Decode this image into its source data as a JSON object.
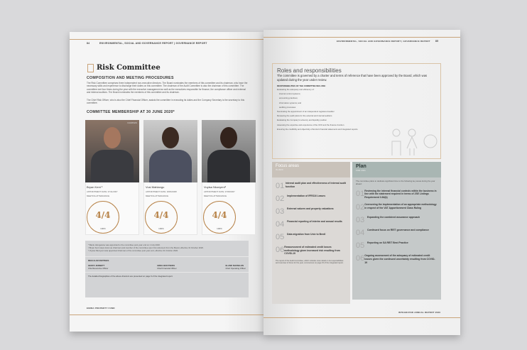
{
  "left_page": {
    "page_number": "84",
    "header": "ENVIRONMENTAL, SOCIAL AND GOVERNANCE REPORT | GOVERNANCE REPORT",
    "title": "Risk Committee",
    "section1": "COMPOSITION AND MEETING PROCEDURES",
    "para1": "The Risk Committee comprises three independent non-executive directors. The Board nominates the members of this committee and its chairman, who have the necessary skills and experience to discharge their duties on this committee. The chairman of the Audit Committee is also the chairman of this committee. The committee met four times during the year with the executive management as well as the executives responsible for finance, the compliance officer and external and internal auditors. The Board nominates the members of this committee and its chairman.",
    "para2": "The Chief Risk Officer, who is also the Chief Financial Officer, assists the committee in executing its duties and the Company Secretary is the secretary to this committee.",
    "section2": "COMMITTEE MEMBERSHIP AT 30 JUNE 2020*",
    "members": [
      {
        "name": "Bryan Kent ³",
        "appointed": "APPOINTMENT DATE: 07/11/2007",
        "attendance_label": "MEETING ATTENDANCE",
        "attendance": "4/4",
        "percent": "100%",
        "badge": "CHAIRMAN"
      },
      {
        "name": "Vusi Mahlangu",
        "appointed": "APPOINTMENT DATE: 18/06/2008",
        "attendance_label": "MEETING ATTENDANCE",
        "attendance": "4/4",
        "percent": "100%"
      },
      {
        "name": "Vuyisa Nkonyeni³",
        "appointed": "APPOINTMENT DATE: 07/08/2007",
        "attendance_label": "MEETING ATTENDANCE",
        "attendance": "4/4",
        "percent": "100%"
      }
    ],
    "footnotes": [
      "* Bantu Hlongwane was appointed to the committee post year end on 1 July 2020.",
      "² Bryan Kent steps down as chairman and member of the committee upon his retirement from the Board, effective 31 October 2020.",
      "³ Vuyisa Nkonyeni was appointed chairman of the committee post year end, effective 31 October 2020."
    ],
    "invitees_label": "REGULAR INVITEES",
    "invitees": [
      {
        "name": "GEOFF JENNETT",
        "role": "Chief Executive Officer"
      },
      {
        "name": "GREG BOOYSENS",
        "role": "Chief Financial Officer"
      },
      {
        "name": "ELAND NAVSELEN",
        "role": "Chief Operating Officer"
      }
    ],
    "bio_note": "The detailed biographies of the above directors are presented on page 9 of the integrated report.",
    "footer": "EMIRA PROPERTY FUND"
  },
  "right_page": {
    "page_number": "85",
    "header": "ENVIRONMENTAL, SOCIAL AND GOVERNANCE REPORT | GOVERNANCE REPORT",
    "roles_title": "Roles and responsibilities",
    "roles_intro": "The committee is governed by a charter and terms of reference that have been approved by the Board, which was updated during the year under review.",
    "resp_label": "RESPONSIBILITIES OF THE COMMITTEE INCLUDE:",
    "resp_items": [
      "Evaluating the adequacy and efficiency of:",
      "internal control systems;",
      "accounting practices;",
      "information systems; and",
      "auditing processes",
      "Nominating the appointment of an independent registered auditor",
      "Reviewing the audit plans for the external and internal auditors",
      "Evaluating the Company's solvency and liquidity position",
      "Assessing the expertise and experience of the CFO and the finance function",
      "Ensuring the credibility and objectivity of Emira's financial statements and integrated reports."
    ],
    "focus": {
      "title": "Focus areas",
      "subtitle": "IN 2020",
      "items": [
        {
          "n": "01",
          "t": "Internal audit plan and effectiveness of internal audit function"
        },
        {
          "n": "02",
          "t": "Implementation of IFRS16 Leases"
        },
        {
          "n": "03",
          "t": "External valuers and property valuations"
        },
        {
          "n": "04",
          "t": "Financial reporting of interim and annual results"
        },
        {
          "n": "05",
          "t": "Data migration from Univ to Bredl"
        },
        {
          "n": "06",
          "t": "Reassessment of estimated credit losses methodology given increased risk resulting from COVID-19"
        }
      ],
      "note": "The report of the Audit Committee, which includes more detail on its responsibilities and overview of focus for the year, commences on page 15 of the integrated report."
    },
    "plan": {
      "title": "Plan",
      "subtitle": "FOR 2021",
      "intro": "The committee plans to dedicate significant time to the following key areas during the year ahead:",
      "items": [
        {
          "n": "01",
          "t": "Reviewing the internal financial controls within the business in line with the statement required in terms of JSE Listings Requirement 3.84(k)"
        },
        {
          "n": "02",
          "t": "Overseeing the implementation of an appropriate methodology in respect of the VAT Apportionment Class Ruling"
        },
        {
          "n": "03",
          "t": "Expanding the combined assurance approach"
        },
        {
          "n": "04",
          "t": "Continued focus on REIT governance and compliance"
        },
        {
          "n": "05",
          "t": "Reporting on SA REIT Best Practice"
        },
        {
          "n": "06",
          "t": "Ongoing assessment of the adequacy of estimated credit losses given the continued uncertainty resulting from COVID-19"
        }
      ]
    },
    "footer": "INTEGRATED ANNUAL REPORT 2020"
  },
  "colors": {
    "accent_gold": "#b8844a",
    "focus_header": "#c9c2ba",
    "plan_header": "#a9b6b3",
    "plan_body": "#c5c9c9"
  }
}
